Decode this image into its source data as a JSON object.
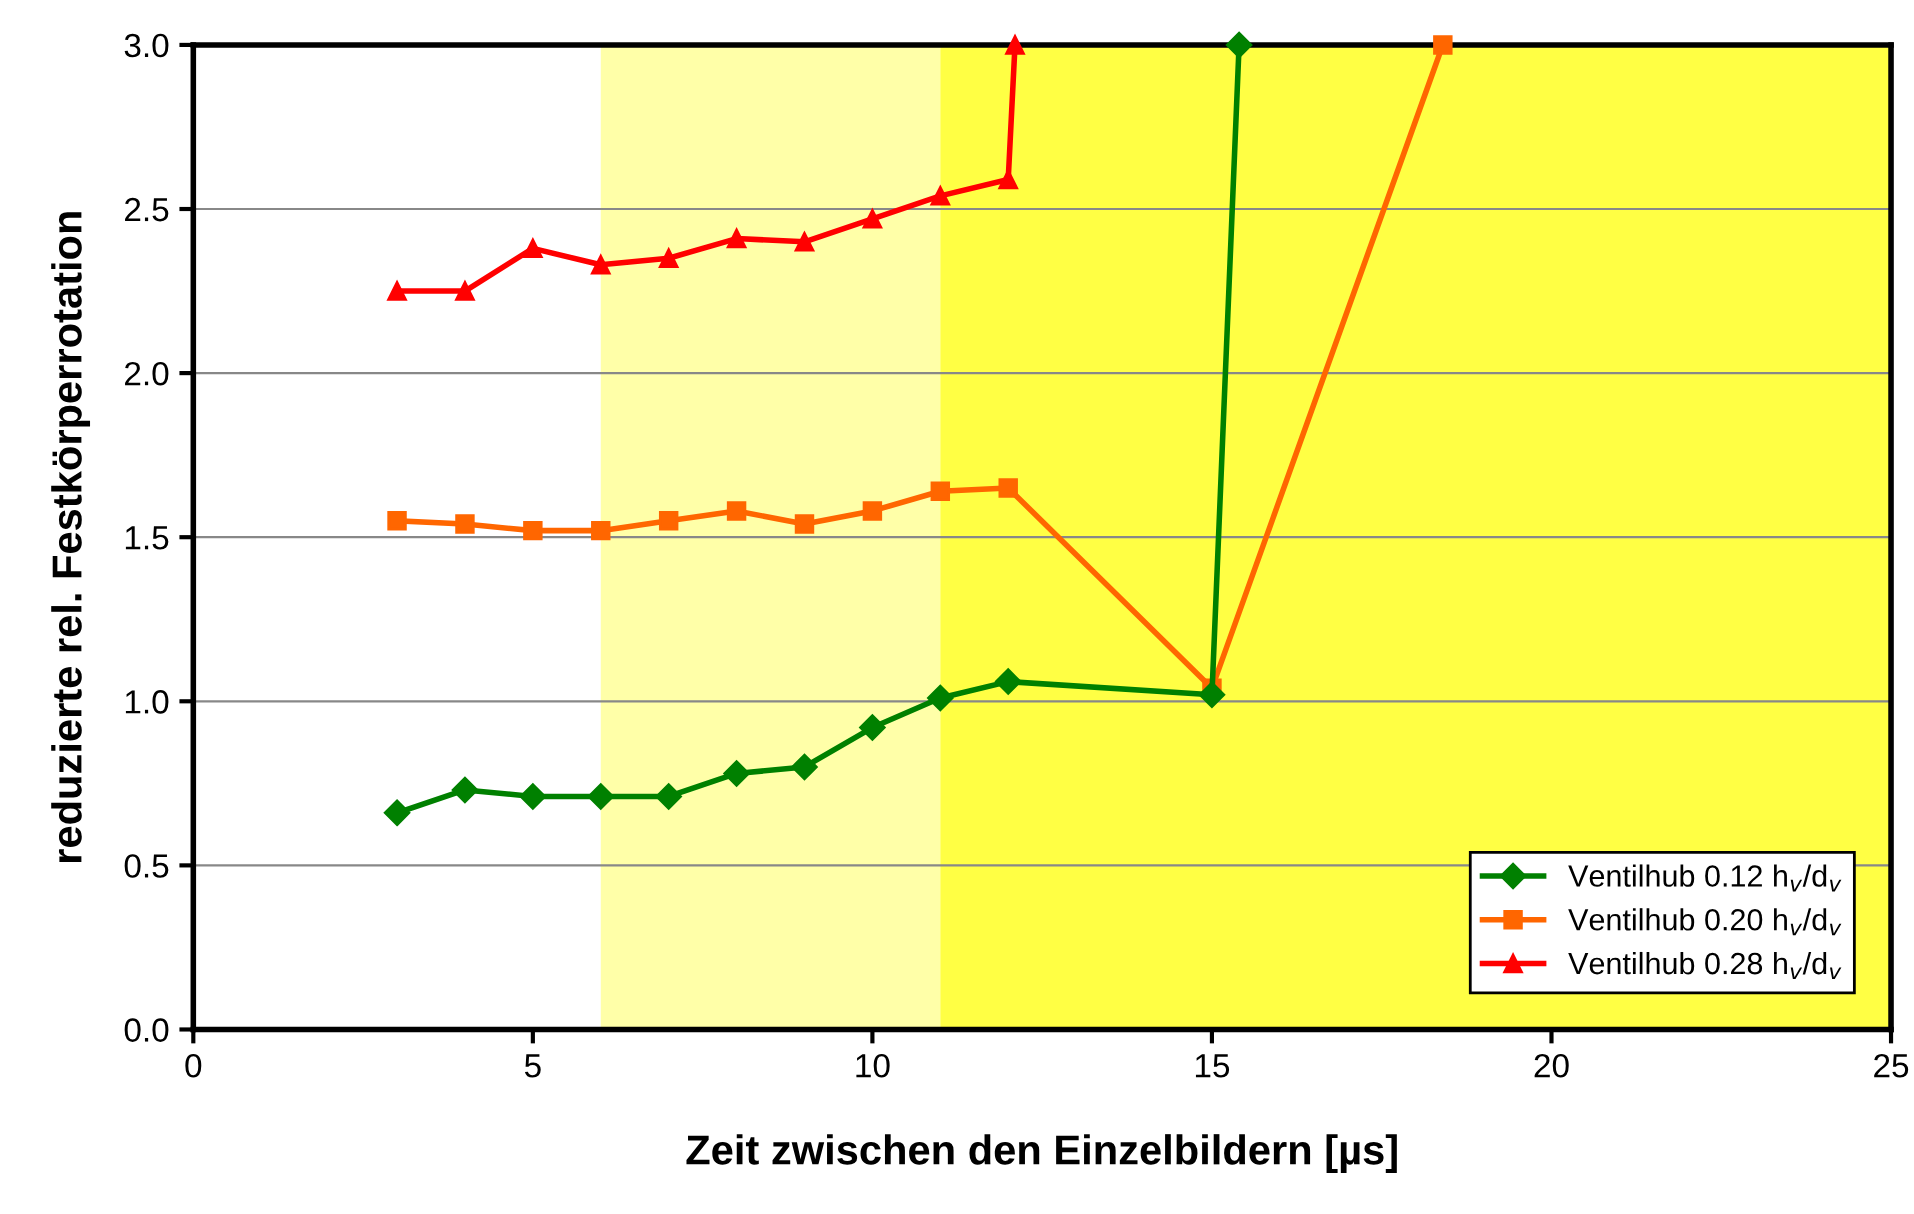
{
  "chart_data": {
    "type": "line",
    "xlabel": "Zeit zwischen den Einzelbildern [µs]",
    "ylabel": "reduzierte rel. Festkörperrotation",
    "xlim": [
      0,
      25
    ],
    "ylim": [
      0,
      3
    ],
    "xticks": [
      0,
      5,
      10,
      15,
      20,
      25
    ],
    "yticks": [
      {
        "value": 0,
        "label": "0.0"
      },
      {
        "value": 0.5,
        "label": "0.5"
      },
      {
        "value": 1,
        "label": "1.0"
      },
      {
        "value": 1.5,
        "label": "1.5"
      },
      {
        "value": 2,
        "label": "2.0"
      },
      {
        "value": 2.5,
        "label": "2.5"
      },
      {
        "value": 3,
        "label": "3.0"
      }
    ],
    "grid": "y",
    "legend": "bottom right",
    "line_style": "solid",
    "bands": [
      {
        "axis": "x",
        "from": 6,
        "to": 11,
        "color": "#ffffa8"
      },
      {
        "axis": "x",
        "from": 11,
        "to": 25,
        "color": "#ffff44"
      }
    ],
    "series": [
      {
        "name": "Ventilhub 0.12 h$_{v}$/d$_{v}$",
        "color": "#008000",
        "marker": "diamond",
        "x": [
          3,
          4,
          5,
          6,
          7,
          8,
          9,
          10,
          11,
          12,
          15,
          15.4
        ],
        "values": [
          0.66,
          0.73,
          0.71,
          0.71,
          0.71,
          0.78,
          0.8,
          0.92,
          1.01,
          1.06,
          1.02,
          3.0
        ]
      },
      {
        "name": "Ventilhub 0.20 h$_{v}$/d$_{v}$",
        "color": "#ff6600",
        "marker": "square",
        "x": [
          3,
          4,
          5,
          6,
          7,
          8,
          9,
          10,
          11,
          12,
          15,
          18.4
        ],
        "values": [
          1.55,
          1.54,
          1.52,
          1.52,
          1.55,
          1.58,
          1.54,
          1.58,
          1.64,
          1.65,
          1.04,
          3.0
        ]
      },
      {
        "name": "Ventilhub 0.28 h$_{v}$/d$_{v}$",
        "color": "#ff0000",
        "marker": "triangle",
        "x": [
          3,
          4,
          5,
          6,
          7,
          8,
          9,
          10,
          11,
          12,
          12.1
        ],
        "values": [
          2.25,
          2.25,
          2.38,
          2.33,
          2.35,
          2.41,
          2.4,
          2.47,
          2.54,
          2.59,
          3.0
        ]
      }
    ]
  }
}
